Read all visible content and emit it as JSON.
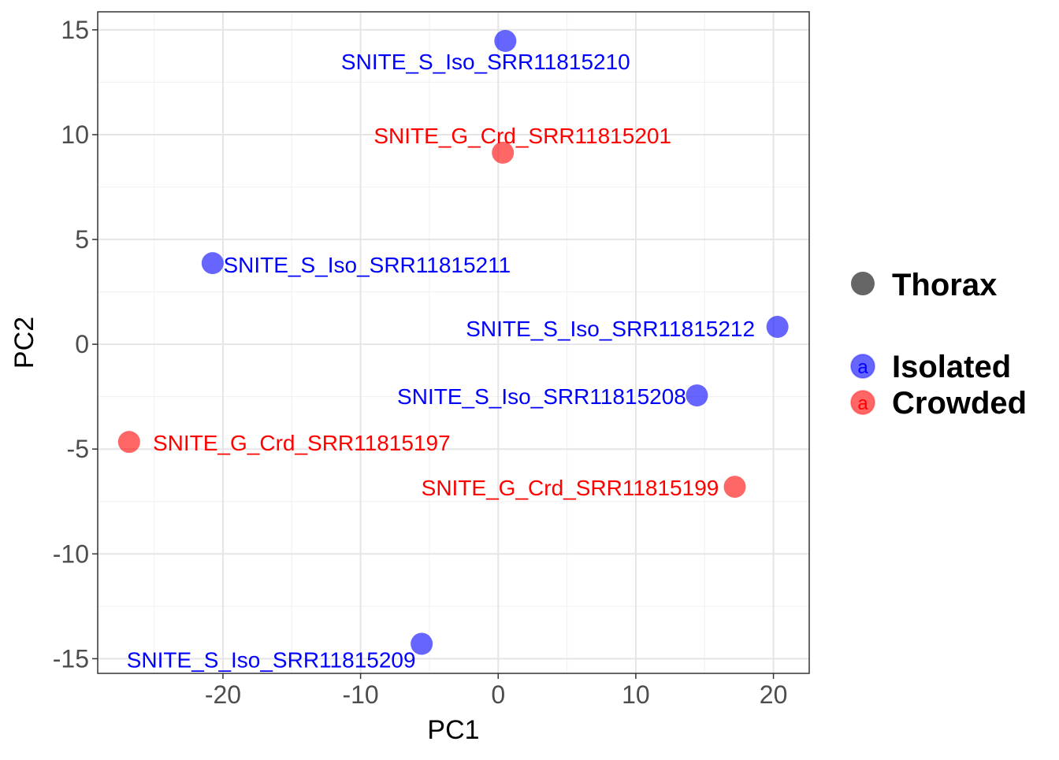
{
  "chart_data": {
    "type": "scatter",
    "title": "",
    "xlabel": "PC1",
    "ylabel": "PC2",
    "xlim": [
      -29.1,
      22.6
    ],
    "ylim": [
      -15.7,
      15.86
    ],
    "x_ticks": [
      -20,
      -10,
      0,
      10,
      20
    ],
    "y_ticks": [
      -15,
      -10,
      -5,
      0,
      5,
      10,
      15
    ],
    "grid": true,
    "legend_position": "right",
    "legend": {
      "shape_title": "Thorax",
      "groups": [
        {
          "name": "Isolated",
          "color": "#0000FF"
        },
        {
          "name": "Crowded",
          "color": "#FF0000"
        }
      ],
      "key_glyph": "a"
    },
    "points": [
      {
        "label": "SNITE_S_Iso_SRR11815210",
        "group": "Isolated",
        "x": 0.52,
        "y": 14.47
      },
      {
        "label": "SNITE_G_Crd_SRR11815201",
        "group": "Crowded",
        "x": 0.34,
        "y": 9.14
      },
      {
        "label": "SNITE_S_Iso_SRR11815211",
        "group": "Isolated",
        "x": -20.75,
        "y": 3.87
      },
      {
        "label": "SNITE_S_Iso_SRR11815212",
        "group": "Isolated",
        "x": 20.29,
        "y": 0.83
      },
      {
        "label": "SNITE_S_Iso_SRR11815208",
        "group": "Isolated",
        "x": 14.44,
        "y": -2.44
      },
      {
        "label": "SNITE_G_Crd_SRR11815197",
        "group": "Crowded",
        "x": -26.82,
        "y": -4.66
      },
      {
        "label": "SNITE_G_Crd_SRR11815199",
        "group": "Crowded",
        "x": 17.19,
        "y": -6.8
      },
      {
        "label": "SNITE_S_Iso_SRR11815209",
        "group": "Isolated",
        "x": -5.56,
        "y": -14.29
      }
    ]
  }
}
